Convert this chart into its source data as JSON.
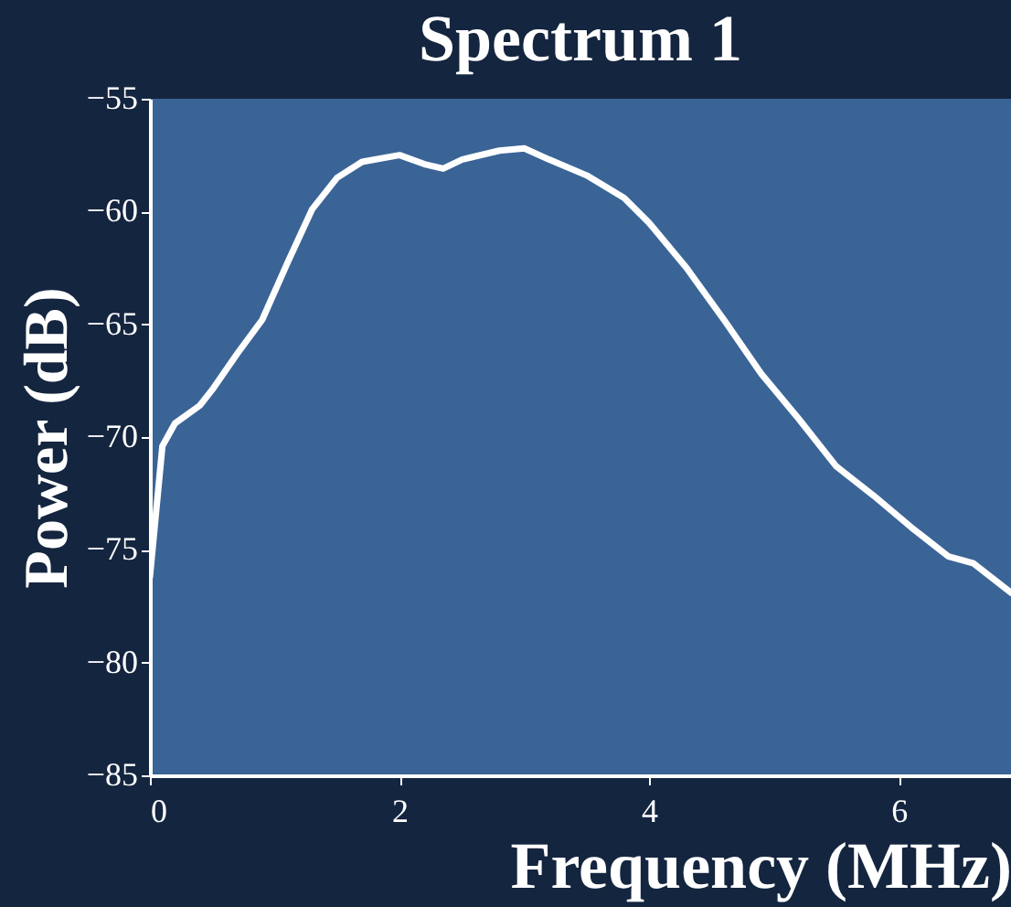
{
  "chart_data": {
    "type": "line",
    "title": "Spectrum 1",
    "xlabel": "Frequency (MHz)",
    "ylabel": "Power (dB)",
    "x": [
      0,
      0.1,
      0.2,
      0.4,
      0.5,
      0.7,
      0.9,
      1.1,
      1.3,
      1.5,
      1.7,
      2.0,
      2.2,
      2.35,
      2.5,
      2.8,
      3.0,
      3.2,
      3.5,
      3.8,
      4.0,
      4.3,
      4.6,
      4.9,
      5.2,
      5.5,
      5.8,
      6.1,
      6.4,
      6.6,
      6.9
    ],
    "series": [
      {
        "color": "#ffffff",
        "values": [
          -76.2,
          -70.4,
          -69.4,
          -68.6,
          -67.9,
          -66.3,
          -64.8,
          -62.3,
          -59.9,
          -58.5,
          -57.8,
          -57.5,
          -57.9,
          -58.1,
          -57.7,
          -57.3,
          -57.2,
          -57.7,
          -58.4,
          -59.4,
          -60.5,
          -62.5,
          -64.8,
          -67.2,
          -69.2,
          -71.3,
          -72.6,
          -74.0,
          -75.3,
          -75.6,
          -76.9
        ]
      }
    ],
    "xlim": [
      0,
      6.9
    ],
    "xticks": [
      0,
      2,
      4,
      6
    ],
    "ylim": [
      -85,
      -55
    ],
    "yticks": [
      -85,
      -80,
      -75,
      -70,
      -65,
      -60,
      -55
    ],
    "grid": false,
    "marker": "none",
    "line_style": "solid"
  }
}
